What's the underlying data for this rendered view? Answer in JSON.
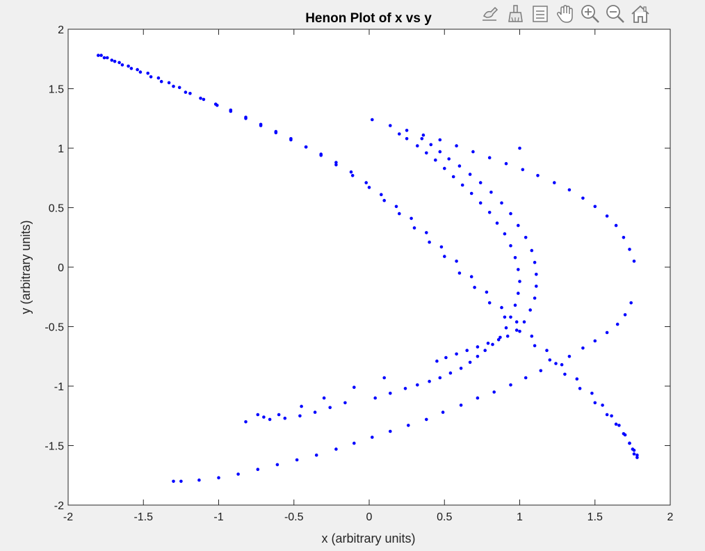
{
  "figure": {
    "background": "#f0f0f0",
    "axes_background": "#ffffff",
    "marker_color": "#0000ff"
  },
  "toolbar": {
    "buttons": [
      {
        "name": "edit-plot-icon"
      },
      {
        "name": "brush-icon"
      },
      {
        "name": "legend-icon"
      },
      {
        "name": "pan-icon"
      },
      {
        "name": "zoom-in-icon"
      },
      {
        "name": "zoom-out-icon"
      },
      {
        "name": "home-icon"
      }
    ]
  },
  "chart_data": {
    "type": "scatter",
    "title": "Henon Plot of x vs y",
    "xlabel": "x (arbitrary units)",
    "ylabel": "y (arbitrary units)",
    "xlim": [
      -2,
      2
    ],
    "ylim": [
      -2,
      2
    ],
    "xticks": [
      -2,
      -1.5,
      -1,
      -0.5,
      0,
      0.5,
      1,
      1.5,
      2
    ],
    "yticks": [
      -2,
      -1.5,
      -1,
      -0.5,
      0,
      0.5,
      1,
      1.5,
      2
    ],
    "xtick_labels": [
      "-2",
      "-1.5",
      "-1",
      "-0.5",
      "0",
      "0.5",
      "1",
      "1.5",
      "2"
    ],
    "ytick_labels": [
      "-2",
      "-1.5",
      "-1",
      "-0.5",
      "0",
      "0.5",
      "1",
      "1.5",
      "2"
    ],
    "grid": false,
    "series": [
      {
        "marker": "dot",
        "x": [
          -1.8,
          -1.76,
          -1.71,
          -1.66,
          -1.6,
          -1.54,
          -1.47,
          -1.4,
          -1.33,
          -1.26,
          -1.19,
          -1.1,
          -1.01,
          -0.92,
          -0.82,
          -0.72,
          -0.62,
          -0.52,
          -0.42,
          -0.32,
          -0.22,
          -0.11,
          0.0,
          0.1,
          0.2,
          0.3,
          0.4,
          0.5,
          0.6,
          0.7,
          0.8,
          0.9,
          1.0,
          1.1,
          1.2,
          1.3,
          1.4,
          1.5,
          1.58,
          1.64,
          1.69,
          1.73,
          1.76,
          1.78,
          1.78,
          -1.78,
          -1.74,
          -1.69,
          -1.64,
          -1.58,
          -1.52,
          -1.45,
          -1.38,
          -1.3,
          -1.22,
          -1.12,
          -1.02,
          -0.92,
          -0.82,
          -0.72,
          -0.62,
          -0.52,
          -0.42,
          -0.32,
          -0.22,
          -0.12,
          -0.02,
          0.08,
          0.18,
          0.28,
          0.38,
          0.48,
          0.58,
          0.68,
          0.78,
          0.88,
          0.98,
          1.08,
          1.18,
          1.28,
          1.38,
          1.48,
          1.55,
          1.61,
          1.66,
          1.7,
          1.73,
          1.75,
          1.76,
          1.74,
          1.7,
          1.65,
          1.58,
          1.5,
          1.42,
          1.33,
          1.24,
          1.14,
          1.04,
          0.94,
          0.83,
          0.72,
          0.61,
          0.49,
          0.38,
          0.26,
          0.14,
          0.02,
          -0.1,
          -0.22,
          -0.35,
          -0.48,
          -0.61,
          -0.74,
          -0.87,
          -1.0,
          -1.13,
          -1.25,
          -1.3,
          1.76,
          1.73,
          1.69,
          1.64,
          1.58,
          1.5,
          1.42,
          1.33,
          1.23,
          1.12,
          1.02,
          0.91,
          0.8,
          0.69,
          0.58,
          0.47,
          0.36,
          0.25,
          0.14,
          0.02,
          0.2,
          0.25,
          0.32,
          0.38,
          0.44,
          0.5,
          0.56,
          0.62,
          0.68,
          0.74,
          0.8,
          0.85,
          0.9,
          0.94,
          0.97,
          0.99,
          1.0,
          0.99,
          0.97,
          0.94,
          0.91,
          0.87,
          0.82,
          0.77,
          0.72,
          0.67,
          0.61,
          0.54,
          0.47,
          0.4,
          0.32,
          0.24,
          0.14,
          0.04,
          -0.16,
          -0.26,
          -0.36,
          -0.46,
          -0.56,
          -0.66,
          -0.7,
          -0.74,
          -0.82,
          0.35,
          0.41,
          0.47,
          0.53,
          0.6,
          0.67,
          0.74,
          0.81,
          0.88,
          0.94,
          0.99,
          1.04,
          1.08,
          1.1,
          1.11,
          1.11,
          1.1,
          1.07,
          1.03,
          0.98,
          0.92,
          0.86,
          0.79,
          0.72,
          0.65,
          0.58,
          0.51,
          0.45,
          -0.6,
          -0.45,
          -0.3,
          -0.1,
          0.1,
          1.0
        ],
        "y": [
          1.78,
          1.76,
          1.74,
          1.72,
          1.69,
          1.66,
          1.63,
          1.59,
          1.55,
          1.51,
          1.46,
          1.41,
          1.36,
          1.31,
          1.25,
          1.19,
          1.13,
          1.07,
          1.01,
          0.94,
          0.86,
          0.77,
          0.67,
          0.56,
          0.45,
          0.33,
          0.21,
          0.09,
          -0.05,
          -0.17,
          -0.3,
          -0.42,
          -0.54,
          -0.66,
          -0.78,
          -0.9,
          -1.02,
          -1.14,
          -1.24,
          -1.32,
          -1.4,
          -1.48,
          -1.54,
          -1.58,
          -1.6,
          1.78,
          1.76,
          1.73,
          1.7,
          1.67,
          1.64,
          1.6,
          1.56,
          1.52,
          1.47,
          1.42,
          1.37,
          1.32,
          1.26,
          1.2,
          1.14,
          1.08,
          1.01,
          0.95,
          0.88,
          0.8,
          0.71,
          0.61,
          0.51,
          0.41,
          0.29,
          0.17,
          0.05,
          -0.08,
          -0.21,
          -0.34,
          -0.46,
          -0.58,
          -0.7,
          -0.82,
          -0.94,
          -1.06,
          -1.16,
          -1.25,
          -1.33,
          -1.41,
          -1.48,
          -1.53,
          -1.57,
          -0.3,
          -0.4,
          -0.48,
          -0.55,
          -0.62,
          -0.68,
          -0.75,
          -0.81,
          -0.87,
          -0.93,
          -0.99,
          -1.05,
          -1.1,
          -1.16,
          -1.22,
          -1.28,
          -1.33,
          -1.38,
          -1.43,
          -1.48,
          -1.53,
          -1.58,
          -1.62,
          -1.66,
          -1.7,
          -1.74,
          -1.77,
          -1.79,
          -1.8,
          -1.8,
          0.05,
          0.15,
          0.25,
          0.35,
          0.43,
          0.51,
          0.58,
          0.65,
          0.71,
          0.77,
          0.82,
          0.87,
          0.92,
          0.97,
          1.02,
          1.07,
          1.11,
          1.15,
          1.19,
          1.24,
          1.12,
          1.08,
          1.02,
          0.96,
          0.9,
          0.83,
          0.76,
          0.69,
          0.62,
          0.54,
          0.46,
          0.37,
          0.28,
          0.18,
          0.08,
          -0.02,
          -0.12,
          -0.22,
          -0.32,
          -0.42,
          -0.51,
          -0.59,
          -0.65,
          -0.7,
          -0.75,
          -0.8,
          -0.85,
          -0.89,
          -0.93,
          -0.96,
          -0.99,
          -1.02,
          -1.06,
          -1.1,
          -1.14,
          -1.18,
          -1.22,
          -1.25,
          -1.27,
          -1.28,
          -1.26,
          -1.24,
          -1.3,
          1.08,
          1.03,
          0.97,
          0.91,
          0.85,
          0.78,
          0.71,
          0.63,
          0.54,
          0.45,
          0.35,
          0.25,
          0.14,
          0.04,
          -0.06,
          -0.16,
          -0.26,
          -0.36,
          -0.46,
          -0.53,
          -0.58,
          -0.61,
          -0.64,
          -0.67,
          -0.7,
          -0.73,
          -0.76,
          -0.79,
          -1.24,
          -1.17,
          -1.1,
          -1.01,
          -0.93,
          1.0
        ]
      }
    ]
  }
}
